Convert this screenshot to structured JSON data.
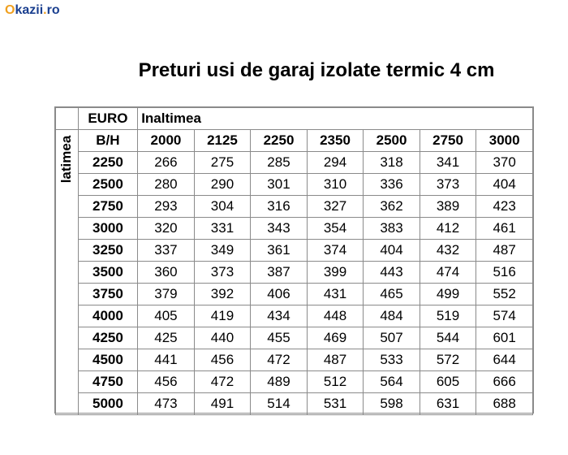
{
  "logo": {
    "brand": "Okazii",
    "tld": ".ro"
  },
  "title": "Preturi usi de garaj izolate termic 4 cm",
  "table": {
    "currency_label": "EURO",
    "height_label": "Inaltimea",
    "width_label": "latimea",
    "corner_label": "B/H",
    "heights": [
      "2000",
      "2125",
      "2250",
      "2350",
      "2500",
      "2750",
      "3000"
    ],
    "rows": [
      {
        "width": "2250",
        "prices": [
          "266",
          "275",
          "285",
          "294",
          "318",
          "341",
          "370"
        ]
      },
      {
        "width": "2500",
        "prices": [
          "280",
          "290",
          "301",
          "310",
          "336",
          "373",
          "404"
        ]
      },
      {
        "width": "2750",
        "prices": [
          "293",
          "304",
          "316",
          "327",
          "362",
          "389",
          "423"
        ]
      },
      {
        "width": "3000",
        "prices": [
          "320",
          "331",
          "343",
          "354",
          "383",
          "412",
          "461"
        ]
      },
      {
        "width": "3250",
        "prices": [
          "337",
          "349",
          "361",
          "374",
          "404",
          "432",
          "487"
        ]
      },
      {
        "width": "3500",
        "prices": [
          "360",
          "373",
          "387",
          "399",
          "443",
          "474",
          "516"
        ]
      },
      {
        "width": "3750",
        "prices": [
          "379",
          "392",
          "406",
          "431",
          "465",
          "499",
          "552"
        ]
      },
      {
        "width": "4000",
        "prices": [
          "405",
          "419",
          "434",
          "448",
          "484",
          "519",
          "574"
        ]
      },
      {
        "width": "4250",
        "prices": [
          "425",
          "440",
          "455",
          "469",
          "507",
          "544",
          "601"
        ]
      },
      {
        "width": "4500",
        "prices": [
          "441",
          "456",
          "472",
          "487",
          "533",
          "572",
          "644"
        ]
      },
      {
        "width": "4750",
        "prices": [
          "456",
          "472",
          "489",
          "512",
          "564",
          "605",
          "666"
        ]
      },
      {
        "width": "5000",
        "prices": [
          "473",
          "491",
          "514",
          "531",
          "598",
          "631",
          "688"
        ]
      }
    ]
  }
}
